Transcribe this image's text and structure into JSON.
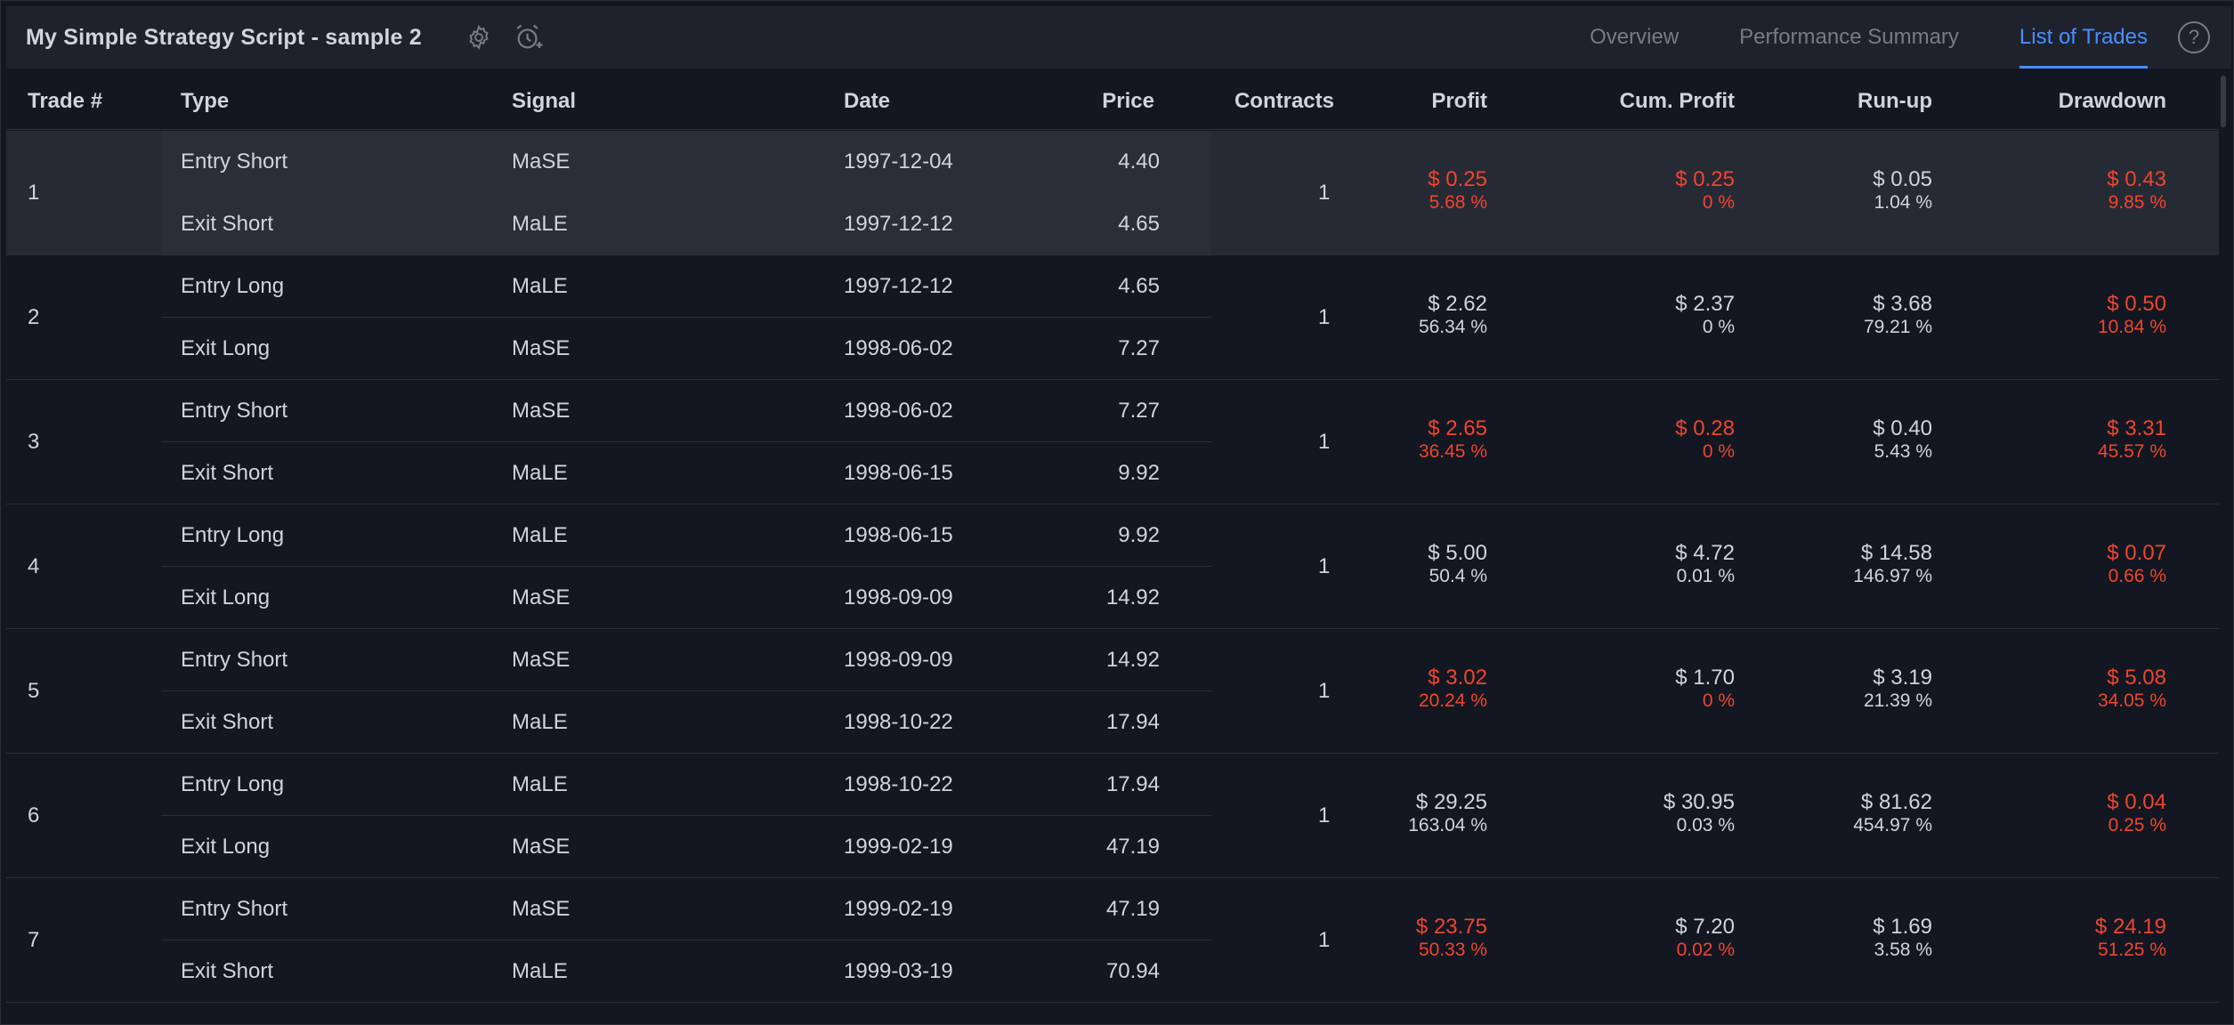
{
  "header": {
    "title": "My Simple Strategy Script - sample 2",
    "icons": {
      "settings": "gear-icon",
      "alert": "alarm-plus-icon",
      "help": "help-icon"
    },
    "help_label": "?",
    "tabs": [
      {
        "label": "Overview",
        "active": false
      },
      {
        "label": "Performance Summary",
        "active": false
      },
      {
        "label": "List of Trades",
        "active": true
      }
    ]
  },
  "colors": {
    "background": "#131722",
    "header": "#1e222d",
    "accent": "#4a8eff",
    "negative": "#f0452e",
    "text": "#d1d4dc"
  },
  "table": {
    "columns": {
      "trade": "Trade #",
      "type": "Type",
      "signal": "Signal",
      "date": "Date",
      "price": "Price",
      "contracts": "Contracts",
      "profit": "Profit",
      "cum_profit": "Cum. Profit",
      "runup": "Run-up",
      "drawdown": "Drawdown"
    },
    "trades": [
      {
        "num": "1",
        "contracts": "1",
        "entry": {
          "type": "Entry Short",
          "signal": "MaSE",
          "date": "1997-12-04",
          "price": "4.40"
        },
        "exit": {
          "type": "Exit Short",
          "signal": "MaLE",
          "date": "1997-12-12",
          "price": "4.65"
        },
        "profit": {
          "value": "$ 0.25",
          "pct": "5.68 %",
          "negative": true
        },
        "cum_profit": {
          "value": "$ 0.25",
          "pct": "0 %",
          "negative": true
        },
        "runup": {
          "value": "$ 0.05",
          "pct": "1.04 %",
          "negative": false
        },
        "drawdown": {
          "value": "$ 0.43",
          "pct": "9.85 %",
          "negative": true
        }
      },
      {
        "num": "2",
        "contracts": "1",
        "entry": {
          "type": "Entry Long",
          "signal": "MaLE",
          "date": "1997-12-12",
          "price": "4.65"
        },
        "exit": {
          "type": "Exit Long",
          "signal": "MaSE",
          "date": "1998-06-02",
          "price": "7.27"
        },
        "profit": {
          "value": "$ 2.62",
          "pct": "56.34 %",
          "negative": false
        },
        "cum_profit": {
          "value": "$ 2.37",
          "pct": "0 %",
          "negative": false
        },
        "runup": {
          "value": "$ 3.68",
          "pct": "79.21 %",
          "negative": false
        },
        "drawdown": {
          "value": "$ 0.50",
          "pct": "10.84 %",
          "negative": true
        }
      },
      {
        "num": "3",
        "contracts": "1",
        "entry": {
          "type": "Entry Short",
          "signal": "MaSE",
          "date": "1998-06-02",
          "price": "7.27"
        },
        "exit": {
          "type": "Exit Short",
          "signal": "MaLE",
          "date": "1998-06-15",
          "price": "9.92"
        },
        "profit": {
          "value": "$ 2.65",
          "pct": "36.45 %",
          "negative": true
        },
        "cum_profit": {
          "value": "$ 0.28",
          "pct": "0 %",
          "negative": true
        },
        "runup": {
          "value": "$ 0.40",
          "pct": "5.43 %",
          "negative": false
        },
        "drawdown": {
          "value": "$ 3.31",
          "pct": "45.57 %",
          "negative": true
        }
      },
      {
        "num": "4",
        "contracts": "1",
        "entry": {
          "type": "Entry Long",
          "signal": "MaLE",
          "date": "1998-06-15",
          "price": "9.92"
        },
        "exit": {
          "type": "Exit Long",
          "signal": "MaSE",
          "date": "1998-09-09",
          "price": "14.92"
        },
        "profit": {
          "value": "$ 5.00",
          "pct": "50.4 %",
          "negative": false
        },
        "cum_profit": {
          "value": "$ 4.72",
          "pct": "0.01 %",
          "negative": false
        },
        "runup": {
          "value": "$ 14.58",
          "pct": "146.97 %",
          "negative": false
        },
        "drawdown": {
          "value": "$ 0.07",
          "pct": "0.66 %",
          "negative": true
        }
      },
      {
        "num": "5",
        "contracts": "1",
        "entry": {
          "type": "Entry Short",
          "signal": "MaSE",
          "date": "1998-09-09",
          "price": "14.92"
        },
        "exit": {
          "type": "Exit Short",
          "signal": "MaLE",
          "date": "1998-10-22",
          "price": "17.94"
        },
        "profit": {
          "value": "$ 3.02",
          "pct": "20.24 %",
          "negative": true
        },
        "cum_profit": {
          "value": "$ 1.70",
          "pct": "0 %",
          "negative": false,
          "pct_negative": true
        },
        "runup": {
          "value": "$ 3.19",
          "pct": "21.39 %",
          "negative": false
        },
        "drawdown": {
          "value": "$ 5.08",
          "pct": "34.05 %",
          "negative": true
        }
      },
      {
        "num": "6",
        "contracts": "1",
        "entry": {
          "type": "Entry Long",
          "signal": "MaLE",
          "date": "1998-10-22",
          "price": "17.94"
        },
        "exit": {
          "type": "Exit Long",
          "signal": "MaSE",
          "date": "1999-02-19",
          "price": "47.19"
        },
        "profit": {
          "value": "$ 29.25",
          "pct": "163.04 %",
          "negative": false
        },
        "cum_profit": {
          "value": "$ 30.95",
          "pct": "0.03 %",
          "negative": false
        },
        "runup": {
          "value": "$ 81.62",
          "pct": "454.97 %",
          "negative": false
        },
        "drawdown": {
          "value": "$ 0.04",
          "pct": "0.25 %",
          "negative": true
        }
      },
      {
        "num": "7",
        "contracts": "1",
        "entry": {
          "type": "Entry Short",
          "signal": "MaSE",
          "date": "1999-02-19",
          "price": "47.19"
        },
        "exit": {
          "type": "Exit Short",
          "signal": "MaLE",
          "date": "1999-03-19",
          "price": "70.94"
        },
        "profit": {
          "value": "$ 23.75",
          "pct": "50.33 %",
          "negative": true
        },
        "cum_profit": {
          "value": "$ 7.20",
          "pct": "0.02 %",
          "negative": false,
          "pct_negative": true
        },
        "runup": {
          "value": "$ 1.69",
          "pct": "3.58 %",
          "negative": false
        },
        "drawdown": {
          "value": "$ 24.19",
          "pct": "51.25 %",
          "negative": true
        }
      }
    ]
  }
}
